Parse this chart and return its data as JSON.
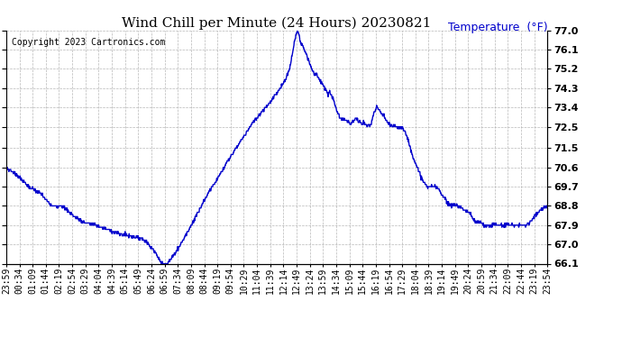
{
  "title": "Wind Chill per Minute (24 Hours) 20230821",
  "temp_label": "Temperature  (°F)",
  "copyright_text": "Copyright 2023 Cartronics.com",
  "line_color": "#0000cc",
  "background_color": "#ffffff",
  "grid_color": "#b0b0b0",
  "ylabel_color": "#0000cc",
  "ylim": [
    66.1,
    77.0
  ],
  "yticks": [
    66.1,
    67.0,
    67.9,
    68.8,
    69.7,
    70.6,
    71.5,
    72.5,
    73.4,
    74.3,
    75.2,
    76.1,
    77.0
  ],
  "x_labels": [
    "23:59",
    "00:34",
    "01:09",
    "01:44",
    "02:19",
    "02:54",
    "03:29",
    "04:04",
    "04:39",
    "05:14",
    "05:49",
    "06:24",
    "06:59",
    "07:34",
    "08:09",
    "08:44",
    "09:19",
    "09:54",
    "10:29",
    "11:04",
    "11:39",
    "12:14",
    "12:49",
    "13:24",
    "13:59",
    "14:34",
    "15:09",
    "15:44",
    "16:19",
    "16:54",
    "17:29",
    "18:04",
    "18:39",
    "19:14",
    "19:49",
    "20:24",
    "20:59",
    "21:34",
    "22:09",
    "22:44",
    "23:19",
    "23:54"
  ],
  "title_fontsize": 11,
  "tick_fontsize": 7,
  "copyright_fontsize": 7,
  "temp_label_fontsize": 9,
  "linewidth": 1.0
}
